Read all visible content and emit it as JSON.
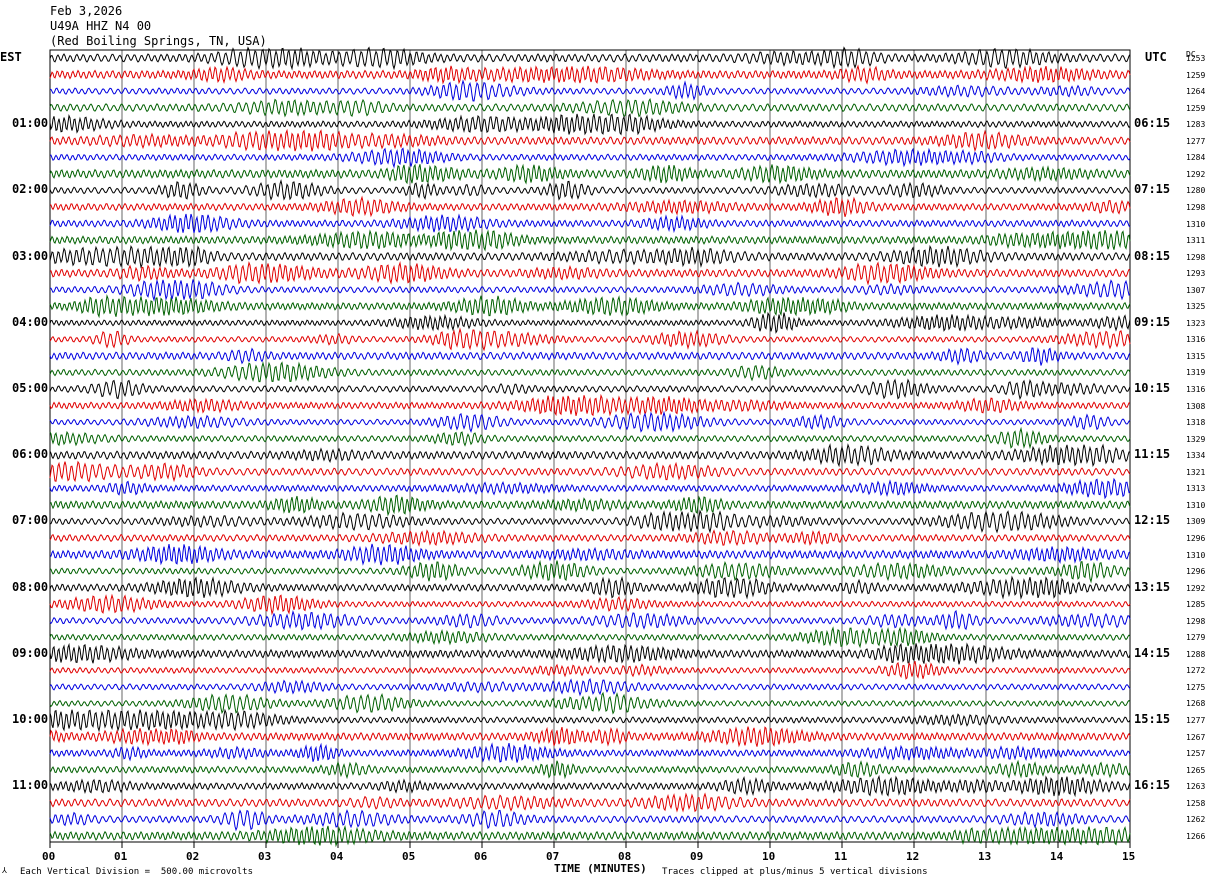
{
  "header": {
    "date": "Feb 3,2026",
    "station": "U49A HHZ N4 00",
    "location": "(Red Boiling Springs, TN, USA)"
  },
  "labels": {
    "left_timezone": "EST",
    "right_timezone": "UTC",
    "dc_label": "DC",
    "xlabel": "TIME (MINUTES)",
    "scale_note": "Each Vertical Division =  500.00 microvolts",
    "clip_note": "Traces clipped at plus/minus 5 vertical divisions"
  },
  "colors": {
    "trace_cycle": [
      "#000000",
      "#e00000",
      "#0000e0",
      "#006000"
    ],
    "grid": "#000000"
  },
  "chart_data": {
    "type": "line",
    "xlabel": "TIME (MINUTES)",
    "xlim": [
      0,
      15
    ],
    "x_ticks": [
      "00",
      "01",
      "02",
      "03",
      "04",
      "05",
      "06",
      "07",
      "08",
      "09",
      "10",
      "11",
      "12",
      "13",
      "14",
      "15"
    ],
    "rows_per_hour": 4,
    "minutes_per_row": 15,
    "left_hour_labels": [
      {
        "row": 4,
        "label": "01:00"
      },
      {
        "row": 8,
        "label": "02:00"
      },
      {
        "row": 12,
        "label": "03:00"
      },
      {
        "row": 16,
        "label": "04:00"
      },
      {
        "row": 20,
        "label": "05:00"
      },
      {
        "row": 24,
        "label": "06:00"
      },
      {
        "row": 28,
        "label": "07:00"
      },
      {
        "row": 32,
        "label": "08:00"
      },
      {
        "row": 36,
        "label": "09:00"
      },
      {
        "row": 40,
        "label": "10:00"
      },
      {
        "row": 44,
        "label": "11:00"
      }
    ],
    "right_hour_labels": [
      {
        "row": 4,
        "label": "06:15"
      },
      {
        "row": 8,
        "label": "07:15"
      },
      {
        "row": 12,
        "label": "08:15"
      },
      {
        "row": 16,
        "label": "09:15"
      },
      {
        "row": 20,
        "label": "10:15"
      },
      {
        "row": 24,
        "label": "11:15"
      },
      {
        "row": 28,
        "label": "12:15"
      },
      {
        "row": 32,
        "label": "13:15"
      },
      {
        "row": 36,
        "label": "14:15"
      },
      {
        "row": 40,
        "label": "15:15"
      },
      {
        "row": 44,
        "label": "16:15"
      }
    ],
    "dc_offsets": [
      1253,
      1259,
      1264,
      1259,
      1283,
      1277,
      1284,
      1292,
      1280,
      1298,
      1310,
      1311,
      1298,
      1293,
      1307,
      1325,
      1323,
      1316,
      1315,
      1319,
      1316,
      1308,
      1318,
      1329,
      1334,
      1321,
      1313,
      1310,
      1309,
      1296,
      1310,
      1296,
      1292,
      1285,
      1298,
      1279,
      1288,
      1272,
      1275,
      1268,
      1277,
      1267,
      1257,
      1265,
      1263,
      1258,
      1262,
      1266
    ],
    "scale_microvolts_per_division": 500.0,
    "clip_divisions": 5
  }
}
